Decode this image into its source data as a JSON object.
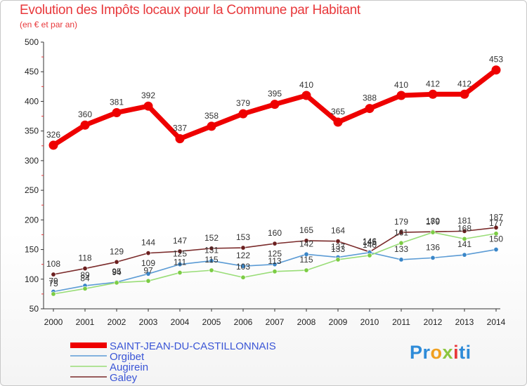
{
  "header": {
    "title": "Evolution des Impôts locaux pour la Commune par Habitant",
    "subtitle": "(en € et par an)"
  },
  "logo": {
    "text": "Proxiti",
    "parts": [
      "Pr",
      "o",
      "x",
      "i",
      "ti"
    ]
  },
  "chart_data": {
    "type": "line",
    "title": "Evolution des Impôts locaux pour la Commune par Habitant",
    "subtitle": "(en € et par an)",
    "xlabel": "",
    "ylabel": "",
    "ylim": [
      50,
      500
    ],
    "yticks": [
      50,
      100,
      150,
      200,
      250,
      300,
      350,
      400,
      450,
      500
    ],
    "grid": false,
    "legend_position": "bottom-left",
    "x": [
      "2000",
      "2001",
      "2002",
      "2003",
      "2004",
      "2005",
      "2006",
      "2007",
      "2008",
      "2009",
      "2010",
      "2011",
      "2012",
      "2013",
      "2014"
    ],
    "series": [
      {
        "name": "SAINT-JEAN-DU-CASTILLONNAIS",
        "color": "#ee0000",
        "marker_color": "#ee0000",
        "values": [
          326,
          360,
          381,
          392,
          337,
          358,
          379,
          395,
          410,
          365,
          388,
          410,
          412,
          412,
          453
        ],
        "labels": [
          "326",
          "360",
          "381",
          "392",
          "337",
          "358",
          "379",
          "395",
          "410",
          "365",
          "388",
          "410",
          "412",
          "412",
          "453"
        ]
      },
      {
        "name": "Orgibet",
        "color": "#5b9bd5",
        "marker_color": "#3a86c8",
        "values": [
          79,
          89,
          95,
          109,
          125,
          131,
          122,
          125,
          142,
          137,
          145,
          133,
          136,
          141,
          150
        ],
        "labels": [
          "79",
          "89",
          "95",
          "109",
          "125",
          "131",
          "122",
          "125",
          "142",
          "137",
          "145",
          "133",
          "136",
          "141",
          "150"
        ]
      },
      {
        "name": "Augirein",
        "color": "#99dd77",
        "marker_color": "#7ccc44",
        "values": [
          75,
          84,
          94,
          97,
          111,
          115,
          103,
          113,
          115,
          133,
          140,
          161,
          179,
          168,
          177
        ],
        "labels": [
          "75",
          "84",
          "94",
          "97",
          "111",
          "115",
          "103",
          "113",
          "115",
          "133",
          "140",
          "161",
          "179",
          "168",
          "177"
        ]
      },
      {
        "name": "Galey",
        "color": "#7a2a2a",
        "marker_color": "#6b1f1f",
        "values": [
          108,
          118,
          129,
          144,
          147,
          152,
          153,
          160,
          165,
          164,
          146,
          179,
          180,
          181,
          187
        ],
        "labels": [
          "108",
          "118",
          "129",
          "144",
          "147",
          "152",
          "153",
          "160",
          "165",
          "164",
          "146",
          "179",
          "180",
          "181",
          "187"
        ]
      }
    ]
  }
}
